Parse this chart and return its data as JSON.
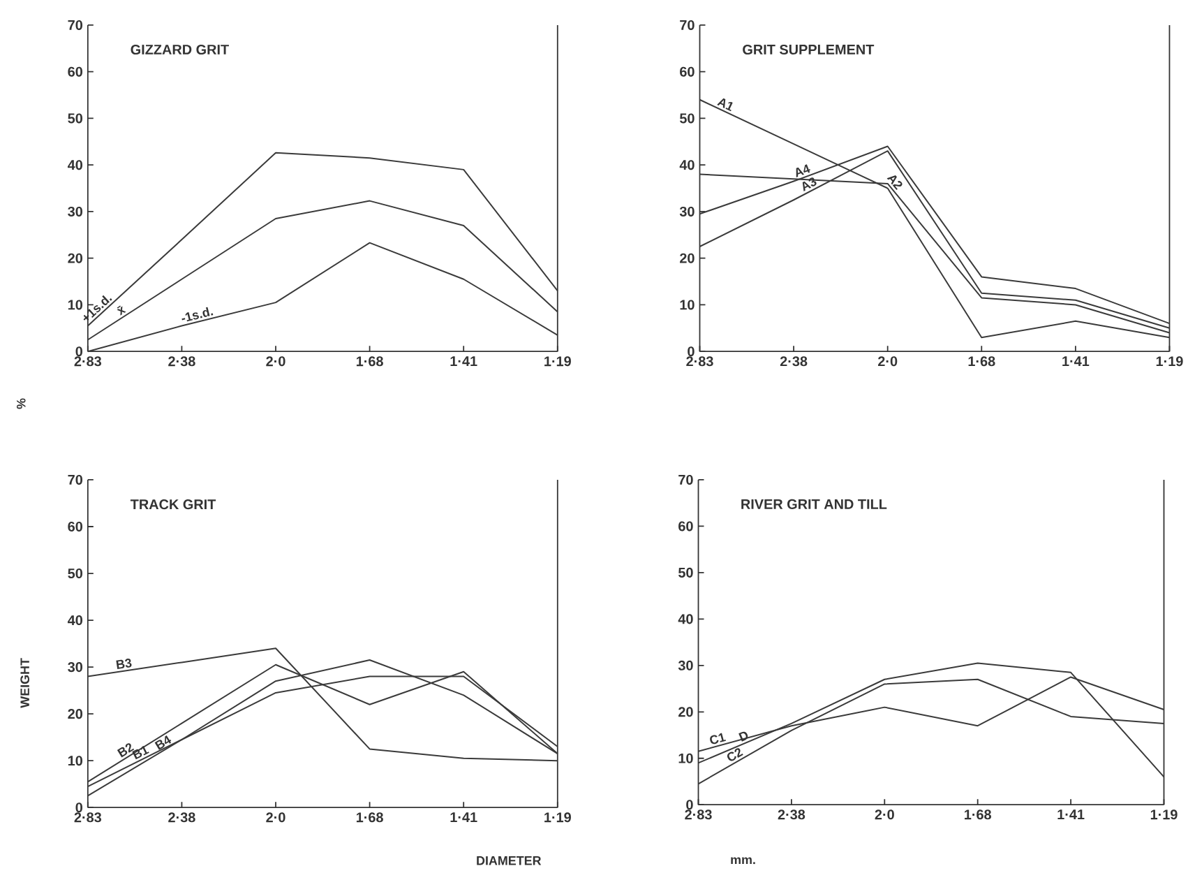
{
  "chart_data": [
    {
      "type": "line",
      "title": "GIZZARD GRIT",
      "ylabel": "%",
      "categories": [
        "2·83",
        "2·38",
        "2·0",
        "1·68",
        "1·41",
        "1·19"
      ],
      "ylim": [
        0,
        70
      ],
      "yticks": [
        0,
        10,
        20,
        30,
        40,
        50,
        60,
        70
      ],
      "series": [
        {
          "name": "+1s.d.",
          "color": "#3a3a3a",
          "values": [
            5.5,
            24,
            42.6,
            41.5,
            39,
            13
          ]
        },
        {
          "name": "x̄",
          "color": "#3a3a3a",
          "values": [
            2.5,
            15.5,
            28.5,
            32.3,
            27,
            8.5
          ]
        },
        {
          "name": "-1s.d.",
          "color": "#3a3a3a",
          "values": [
            0,
            5.5,
            10.5,
            23.3,
            15.5,
            3.5
          ]
        }
      ]
    },
    {
      "type": "line",
      "title": "GRIT SUPPLEMENT",
      "categories": [
        "2·83",
        "2·38",
        "2·0",
        "1·68",
        "1·41",
        "1·19"
      ],
      "ylim": [
        0,
        70
      ],
      "yticks": [
        0,
        10,
        20,
        30,
        40,
        50,
        60,
        70
      ],
      "series": [
        {
          "name": "A1",
          "color": "#3a3a3a",
          "values": [
            54,
            44.5,
            35,
            3,
            6.5,
            3
          ]
        },
        {
          "name": "A2",
          "color": "#3a3a3a",
          "values": [
            38,
            37,
            36,
            11.5,
            10,
            4
          ]
        },
        {
          "name": "A4",
          "color": "#3a3a3a",
          "values": [
            29.5,
            36.5,
            44,
            16,
            13.5,
            6
          ]
        },
        {
          "name": "A3",
          "color": "#3a3a3a",
          "values": [
            22.5,
            32.5,
            43,
            12.5,
            11,
            5
          ]
        }
      ]
    },
    {
      "type": "line",
      "title": "TRACK GRIT",
      "ylabel": "WEIGHT",
      "xlabel": "DIAMETER",
      "categories": [
        "2·83",
        "2·38",
        "2·0",
        "1·68",
        "1·41",
        "1·19"
      ],
      "ylim": [
        0,
        70
      ],
      "yticks": [
        0,
        10,
        20,
        30,
        40,
        50,
        60,
        70
      ],
      "series": [
        {
          "name": "B3",
          "color": "#3a3a3a",
          "values": [
            28,
            31,
            34,
            12.5,
            10.5,
            10
          ]
        },
        {
          "name": "B2",
          "color": "#3a3a3a",
          "values": [
            5.5,
            18,
            30.5,
            22,
            29,
            11.5
          ]
        },
        {
          "name": "B1",
          "color": "#3a3a3a",
          "values": [
            4.5,
            14.5,
            24.5,
            28,
            28,
            13
          ]
        },
        {
          "name": "B4",
          "color": "#3a3a3a",
          "values": [
            2.5,
            14.5,
            27,
            31.5,
            24,
            11.5
          ]
        }
      ]
    },
    {
      "type": "line",
      "title": "RIVER GRIT AND TILL",
      "xlabel": "mm.",
      "categories": [
        "2·83",
        "2·38",
        "2·0",
        "1·68",
        "1·41",
        "1·19"
      ],
      "ylim": [
        0,
        70
      ],
      "yticks": [
        0,
        10,
        20,
        30,
        40,
        50,
        60,
        70
      ],
      "series": [
        {
          "name": "C1",
          "color": "#3a3a3a",
          "values": [
            11.5,
            17,
            21,
            17,
            27.5,
            20.5
          ]
        },
        {
          "name": "D",
          "color": "#3a3a3a",
          "values": [
            9,
            17.5,
            27,
            30.5,
            28.5,
            6
          ]
        },
        {
          "name": "C2",
          "color": "#3a3a3a",
          "values": [
            4.5,
            16,
            26,
            27,
            19,
            17.5
          ]
        }
      ]
    }
  ]
}
